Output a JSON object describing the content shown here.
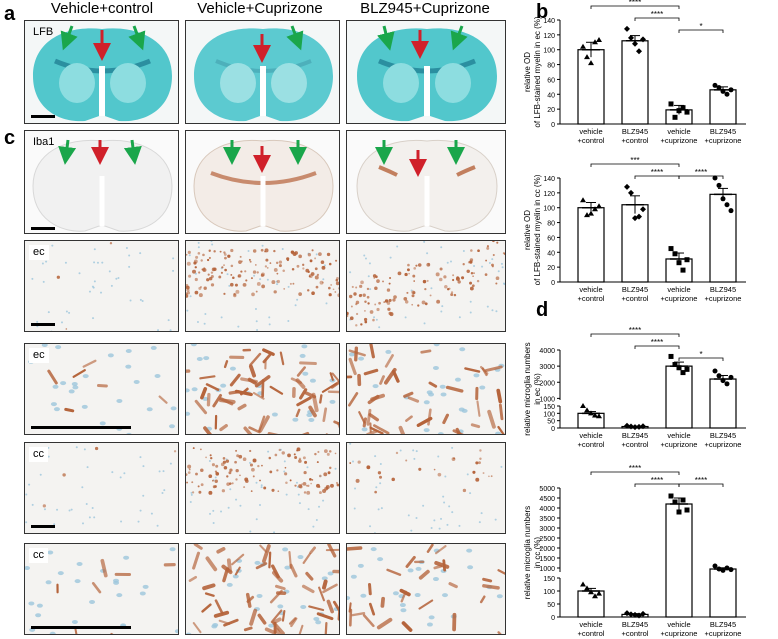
{
  "panel_letters": {
    "a": "a",
    "b": "b",
    "c": "c",
    "d": "d"
  },
  "columns": [
    "Vehicle+control",
    "Vehicle+Cuprizone",
    "BLZ945+Cuprizone"
  ],
  "row_labels": {
    "lfb": "LFB",
    "iba1": "Iba1",
    "ec": "ec",
    "cc": "cc"
  },
  "colors": {
    "green_arrow": "#1aa64b",
    "red_arrow": "#d0202a",
    "lfb_blue": "#52c7cc",
    "iba_brown": "#b5633a"
  },
  "chart_data": [
    {
      "type": "bar",
      "ylabel_line1": "relative OD",
      "ylabel_line2": "of LFB-stained myelin in ec (%)",
      "categories": [
        [
          "vehicle",
          "+control"
        ],
        [
          "BLZ945",
          "+control"
        ],
        [
          "vehicle",
          "+cuprizone"
        ],
        [
          "BLZ945",
          "+cuprizone"
        ]
      ],
      "values": [
        100,
        112,
        19,
        46
      ],
      "errors": [
        10,
        7,
        6,
        4
      ],
      "points": [
        [
          104,
          90,
          82,
          110,
          113
        ],
        [
          128,
          116,
          108,
          98,
          114
        ],
        [
          27,
          9,
          18,
          22,
          16
        ],
        [
          52,
          49,
          44,
          40,
          46
        ]
      ],
      "markers": [
        "triangle",
        "diamond",
        "square",
        "circle"
      ],
      "yticks": [
        0,
        20,
        40,
        60,
        80,
        100,
        120,
        140
      ],
      "ylim": [
        0,
        140
      ],
      "sig": [
        {
          "from": 0,
          "to": 2,
          "label": "****",
          "level": 0
        },
        {
          "from": 1,
          "to": 2,
          "label": "****",
          "level": 1
        },
        {
          "from": 2,
          "to": 3,
          "label": "*",
          "level": 2
        }
      ]
    },
    {
      "type": "bar",
      "ylabel_line1": "relative OD",
      "ylabel_line2": "of LFB-stained myelin in cc (%)",
      "categories": [
        [
          "vehicle",
          "+control"
        ],
        [
          "BLZ945",
          "+control"
        ],
        [
          "vehicle",
          "+cuprizone"
        ],
        [
          "BLZ945",
          "+cuprizone"
        ]
      ],
      "values": [
        100,
        104,
        31,
        118
      ],
      "errors": [
        7,
        12,
        8,
        8
      ],
      "points": [
        [
          110,
          90,
          92,
          98,
          102
        ],
        [
          128,
          120,
          86,
          88,
          98
        ],
        [
          45,
          38,
          26,
          16,
          30
        ],
        [
          140,
          130,
          112,
          104,
          96
        ]
      ],
      "markers": [
        "triangle",
        "diamond",
        "square",
        "circle"
      ],
      "yticks": [
        0,
        20,
        40,
        60,
        80,
        100,
        120,
        140
      ],
      "ylim": [
        0,
        140
      ],
      "sig": [
        {
          "from": 0,
          "to": 2,
          "label": "***",
          "level": 0
        },
        {
          "from": 1,
          "to": 2,
          "label": "****",
          "level": 1
        },
        {
          "from": 2,
          "to": 3,
          "label": "****",
          "level": 1
        }
      ]
    },
    {
      "type": "bar",
      "broken_axis": true,
      "ylabel_line1": "relative microglia numbers",
      "ylabel_line2": "in ec (%)",
      "categories": [
        [
          "vehicle",
          "+control"
        ],
        [
          "BLZ945",
          "+control"
        ],
        [
          "vehicle",
          "+cuprizone"
        ],
        [
          "BLZ945",
          "+cuprizone"
        ]
      ],
      "values": [
        100,
        10,
        3000,
        2200
      ],
      "errors": [
        12,
        3,
        250,
        220
      ],
      "points": [
        [
          150,
          120,
          100,
          85,
          80
        ],
        [
          15,
          10,
          6,
          8,
          12
        ],
        [
          3600,
          3100,
          2900,
          2600,
          2800
        ],
        [
          2700,
          2400,
          2100,
          1900,
          2300
        ]
      ],
      "markers": [
        "triangle",
        "diamond",
        "square",
        "circle"
      ],
      "lower_ticks": [
        0,
        50,
        100,
        150
      ],
      "upper_ticks": [
        1000,
        2000,
        3000,
        4000
      ],
      "lower_range": [
        0,
        150
      ],
      "upper_range": [
        900,
        4000
      ],
      "sig": [
        {
          "from": 0,
          "to": 2,
          "label": "****",
          "level": 0
        },
        {
          "from": 1,
          "to": 2,
          "label": "****",
          "level": 1
        },
        {
          "from": 2,
          "to": 3,
          "label": "*",
          "level": 2
        }
      ]
    },
    {
      "type": "bar",
      "broken_axis": true,
      "ylabel_line1": "relative microglia numbers",
      "ylabel_line2": "in cc (%)",
      "categories": [
        [
          "vehicle",
          "+control"
        ],
        [
          "BLZ945",
          "+control"
        ],
        [
          "vehicle",
          "+cuprizone"
        ],
        [
          "BLZ945",
          "+cuprizone"
        ]
      ],
      "values": [
        100,
        10,
        4200,
        950
      ],
      "errors": [
        10,
        3,
        300,
        60
      ],
      "points": [
        [
          125,
          110,
          95,
          80,
          90
        ],
        [
          15,
          10,
          8,
          6,
          12
        ],
        [
          4600,
          4300,
          3800,
          4400,
          3900
        ],
        [
          1100,
          950,
          880,
          1000,
          920
        ]
      ],
      "markers": [
        "triangle",
        "diamond",
        "square",
        "circle"
      ],
      "lower_ticks": [
        0,
        50,
        100,
        150
      ],
      "upper_ticks": [
        1000,
        1500,
        2000,
        2500,
        3000,
        3500,
        4000,
        4500,
        5000
      ],
      "lower_range": [
        0,
        150
      ],
      "upper_range": [
        800,
        5000
      ],
      "sig": [
        {
          "from": 0,
          "to": 2,
          "label": "****",
          "level": 0
        },
        {
          "from": 1,
          "to": 2,
          "label": "****",
          "level": 1
        },
        {
          "from": 2,
          "to": 3,
          "label": "****",
          "level": 1
        }
      ]
    }
  ]
}
